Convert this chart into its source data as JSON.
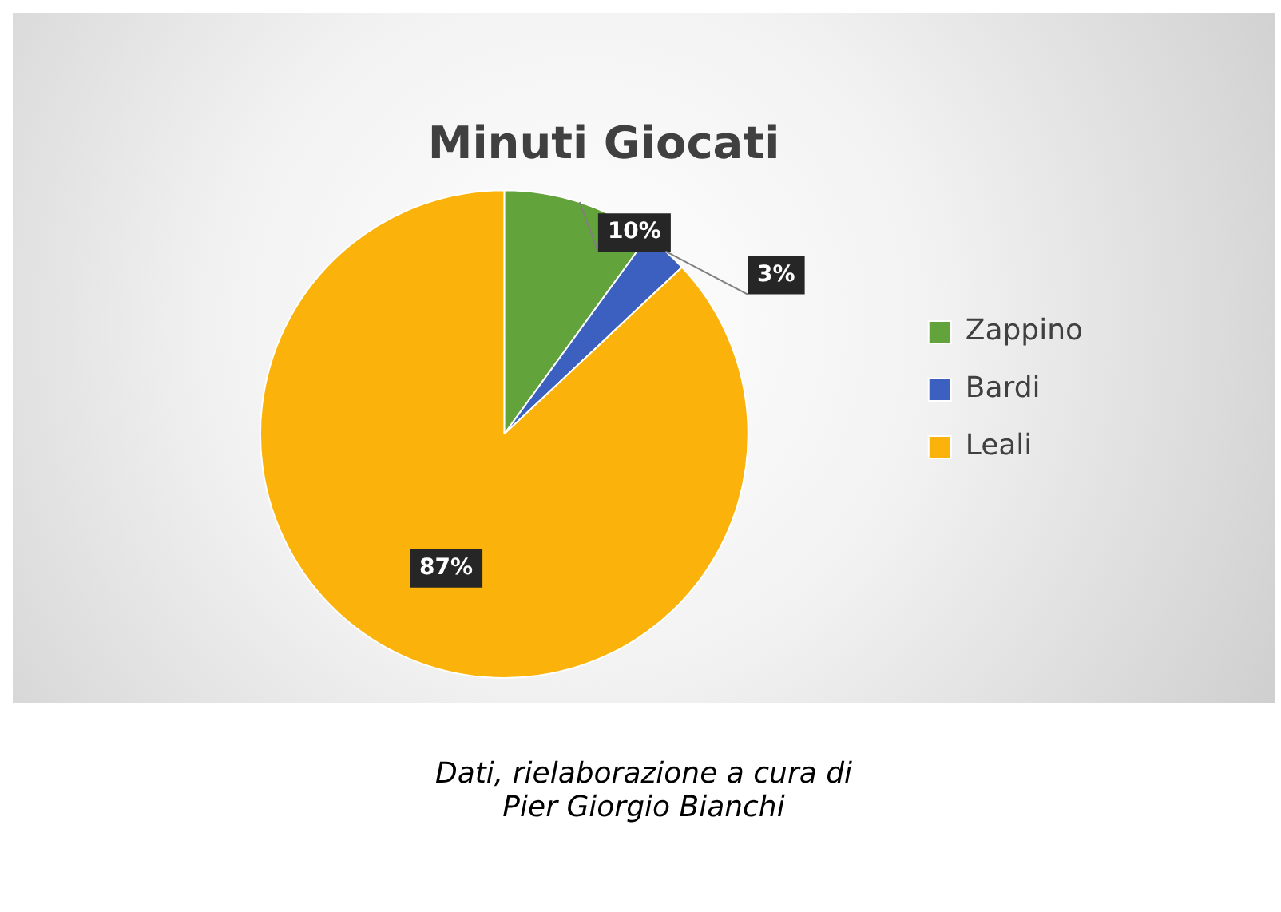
{
  "chart_data": {
    "type": "pie",
    "title": "Minuti Giocati",
    "categories": [
      "Zappino",
      "Bardi",
      "Leali"
    ],
    "values": [
      10,
      3,
      87
    ],
    "value_labels": [
      "10%",
      "3%",
      "87%"
    ],
    "colors": [
      "#63a33b",
      "#3c60c0",
      "#fbb20a"
    ],
    "legend": "right",
    "annotations": [
      "Dati, rielaborazione a cura di Pier Giorgio Bianchi"
    ]
  }
}
